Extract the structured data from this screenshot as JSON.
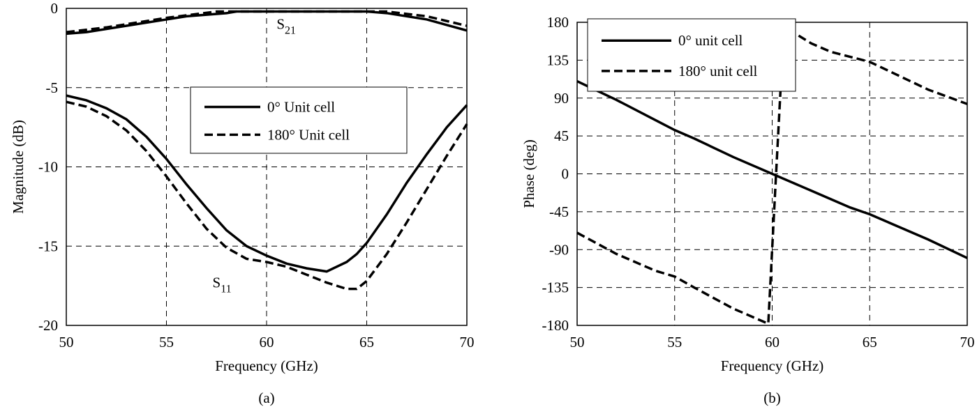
{
  "chart_data": [
    {
      "type": "line",
      "panel_label": "(a)",
      "xlabel": "Frequency (GHz)",
      "ylabel": "Magnitude (dB)",
      "xlim": [
        50,
        70
      ],
      "ylim": [
        -20,
        0
      ],
      "xticks": [
        50,
        55,
        60,
        65,
        70
      ],
      "yticks": [
        -20,
        -15,
        -10,
        -5,
        0
      ],
      "grid": true,
      "legend_placement": "center-right",
      "annotations": [
        {
          "text": "S",
          "sub": "21",
          "at": [
            60.5,
            -1.3
          ]
        },
        {
          "text": "S",
          "sub": "11",
          "at": [
            57.3,
            -17.6
          ]
        }
      ],
      "series": [
        {
          "name": "0° Unit cell",
          "style": "solid",
          "group": "S21",
          "x": [
            50,
            51,
            53,
            55,
            56,
            57,
            58,
            58.5,
            60,
            62,
            64,
            65,
            66,
            68,
            70
          ],
          "y": [
            -1.6,
            -1.5,
            -1.1,
            -0.7,
            -0.5,
            -0.4,
            -0.3,
            -0.2,
            -0.2,
            -0.2,
            -0.2,
            -0.2,
            -0.3,
            -0.7,
            -1.4
          ]
        },
        {
          "name": "180° Unit cell",
          "style": "dashed",
          "group": "S21",
          "x": [
            50,
            52,
            55,
            57.5,
            60,
            64,
            66,
            68,
            70
          ],
          "y": [
            -1.5,
            -1.2,
            -0.6,
            -0.2,
            -0.2,
            -0.2,
            -0.2,
            -0.5,
            -1.1
          ]
        },
        {
          "name": "0° Unit cell",
          "style": "solid",
          "group": "S11",
          "x": [
            50,
            51,
            52,
            53,
            54,
            55,
            56,
            57,
            58,
            59,
            60,
            61,
            62,
            63,
            64,
            64.5,
            65,
            66,
            67,
            68,
            69,
            70
          ],
          "y": [
            -5.5,
            -5.8,
            -6.3,
            -7.0,
            -8.1,
            -9.5,
            -11.1,
            -12.6,
            -14.0,
            -15.0,
            -15.6,
            -16.1,
            -16.4,
            -16.6,
            -16.0,
            -15.5,
            -14.8,
            -13.0,
            -11.0,
            -9.2,
            -7.5,
            -6.1
          ]
        },
        {
          "name": "180° Unit cell",
          "style": "dashed",
          "group": "S11",
          "x": [
            50,
            51,
            52,
            53,
            54,
            55,
            56,
            57,
            58,
            59,
            60,
            61,
            62,
            63,
            64,
            64.5,
            65,
            66,
            67,
            68,
            69,
            70
          ],
          "y": [
            -5.9,
            -6.2,
            -6.8,
            -7.7,
            -9.0,
            -10.6,
            -12.3,
            -13.9,
            -15.1,
            -15.8,
            -16.0,
            -16.3,
            -16.8,
            -17.3,
            -17.7,
            -17.7,
            -17.2,
            -15.5,
            -13.5,
            -11.4,
            -9.3,
            -7.3
          ]
        }
      ]
    },
    {
      "type": "line",
      "panel_label": "(b)",
      "xlabel": "Frequency (GHz)",
      "ylabel": "Phase (deg)",
      "xlim": [
        50,
        70
      ],
      "ylim": [
        -180,
        180
      ],
      "xticks": [
        50,
        55,
        60,
        65,
        70
      ],
      "yticks": [
        -180,
        -135,
        -90,
        -45,
        0,
        45,
        90,
        135,
        180
      ],
      "grid": true,
      "legend_placement": "top-left",
      "series": [
        {
          "name": "0° unit cell",
          "style": "solid",
          "x": [
            50,
            52,
            54,
            55,
            56,
            58,
            60,
            62,
            64,
            65,
            66,
            68,
            70
          ],
          "y": [
            110,
            88,
            64,
            52,
            42,
            20,
            0,
            -20,
            -40,
            -48,
            -58,
            -78,
            -100
          ]
        },
        {
          "name": "180° unit cell",
          "style": "dashed",
          "x": [
            50,
            52,
            54,
            55,
            56,
            58,
            59.8,
            60.2,
            60.6,
            62,
            63,
            65,
            66,
            68,
            70
          ],
          "y": [
            -70,
            -95,
            -115,
            -122,
            -135,
            -160,
            -178,
            0,
            175,
            155,
            145,
            133,
            122,
            100,
            83
          ]
        }
      ]
    }
  ]
}
